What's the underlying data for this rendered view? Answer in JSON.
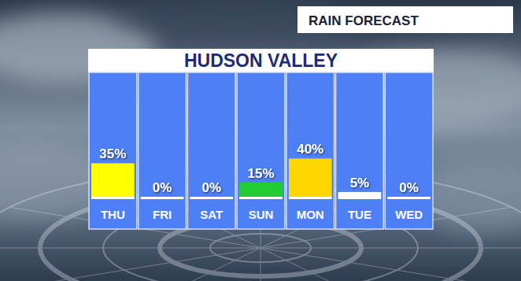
{
  "chart_data": {
    "type": "bar",
    "title": "RAIN FORECAST",
    "subtitle": "HUDSON VALLEY",
    "categories": [
      "THU",
      "FRI",
      "SAT",
      "SUN",
      "MON",
      "TUE",
      "WED"
    ],
    "values": [
      35,
      0,
      0,
      15,
      40,
      5,
      0
    ],
    "value_labels": [
      "35%",
      "0%",
      "0%",
      "15%",
      "40%",
      "5%",
      "0%"
    ],
    "colors": [
      "#ffff00",
      "#ffffff",
      "#ffffff",
      "#22cc33",
      "#ffd700",
      "#ffffff",
      "#ffffff"
    ],
    "ylim": [
      0,
      130
    ],
    "yticks": [],
    "grid": false,
    "data_labels": true,
    "tick_labels": false
  }
}
